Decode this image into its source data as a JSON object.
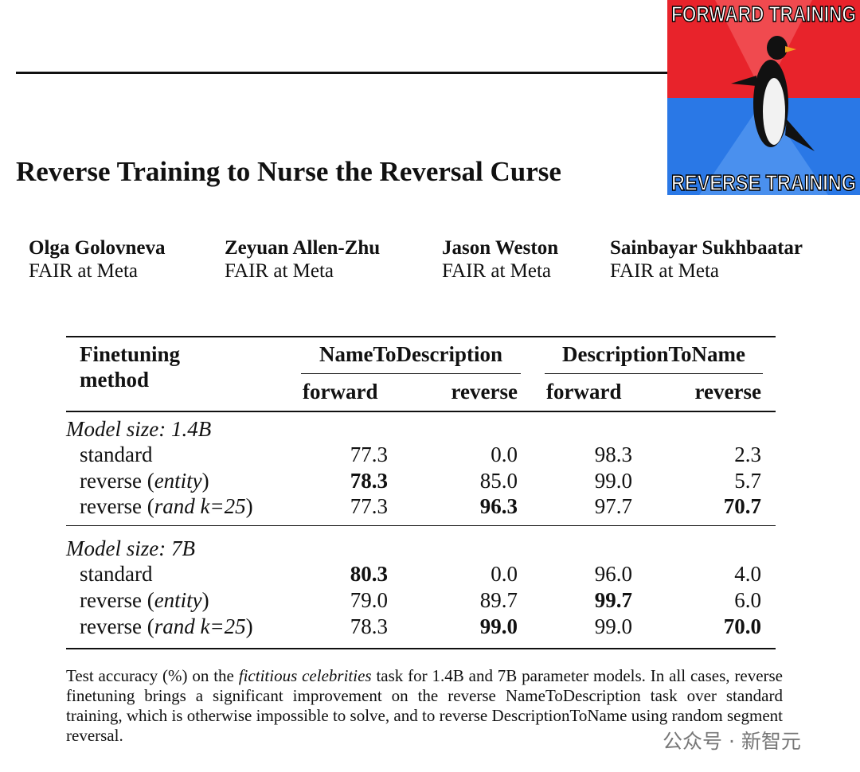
{
  "header": {
    "meme_top": "FORWARD TRAINING",
    "meme_bottom": "REVERSE TRAINING"
  },
  "title": "Reverse Training to Nurse the Reversal Curse",
  "authors": [
    {
      "name": "Olga Golovneva",
      "affiliation": "FAIR at Meta"
    },
    {
      "name": "Zeyuan Allen-Zhu",
      "affiliation": "FAIR at Meta"
    },
    {
      "name": "Jason Weston",
      "affiliation": "FAIR at Meta"
    },
    {
      "name": "Sainbayar Sukhbaatar",
      "affiliation": "FAIR at Meta"
    }
  ],
  "table": {
    "method_header": [
      "Finetuning",
      "method"
    ],
    "group_headers": [
      "NameToDescription",
      "DescriptionToName"
    ],
    "subheaders": [
      "forward",
      "reverse",
      "forward",
      "reverse"
    ],
    "sections": [
      {
        "label": "Model size: 1.4B",
        "rows": [
          {
            "method": [
              "standard"
            ],
            "italic": [],
            "values": [
              "77.3",
              "0.0",
              "98.3",
              "2.3"
            ],
            "bold": []
          },
          {
            "method": [
              "reverse (",
              "entity",
              ")"
            ],
            "italic": [
              1
            ],
            "values": [
              "78.3",
              "85.0",
              "99.0",
              "5.7"
            ],
            "bold": [
              0
            ]
          },
          {
            "method": [
              "reverse (",
              "rand k=25",
              ")"
            ],
            "italic": [
              1
            ],
            "values": [
              "77.3",
              "96.3",
              "97.7",
              "70.7"
            ],
            "bold": [
              1,
              3
            ]
          }
        ]
      },
      {
        "label": "Model size: 7B",
        "rows": [
          {
            "method": [
              "standard"
            ],
            "italic": [],
            "values": [
              "80.3",
              "0.0",
              "96.0",
              "4.0"
            ],
            "bold": [
              0
            ]
          },
          {
            "method": [
              "reverse (",
              "entity",
              ")"
            ],
            "italic": [
              1
            ],
            "values": [
              "79.0",
              "89.7",
              "99.7",
              "6.0"
            ],
            "bold": [
              2
            ]
          },
          {
            "method": [
              "reverse (",
              "rand k=25",
              ")"
            ],
            "italic": [
              1
            ],
            "values": [
              "78.3",
              "99.0",
              "99.0",
              "70.0"
            ],
            "bold": [
              1,
              3
            ]
          }
        ]
      }
    ]
  },
  "caption": {
    "parts": [
      "Test accuracy (%) on the ",
      "fictitious celebrities",
      " task for 1.4B and 7B parameter models. In all cases, reverse finetuning brings a significant improvement on the reverse NameToDescription task over standard training, which is otherwise impossible to solve, and to reverse DescriptionToName using random segment reversal."
    ],
    "italic": [
      1
    ]
  },
  "watermark": "公众号 · 新智元"
}
